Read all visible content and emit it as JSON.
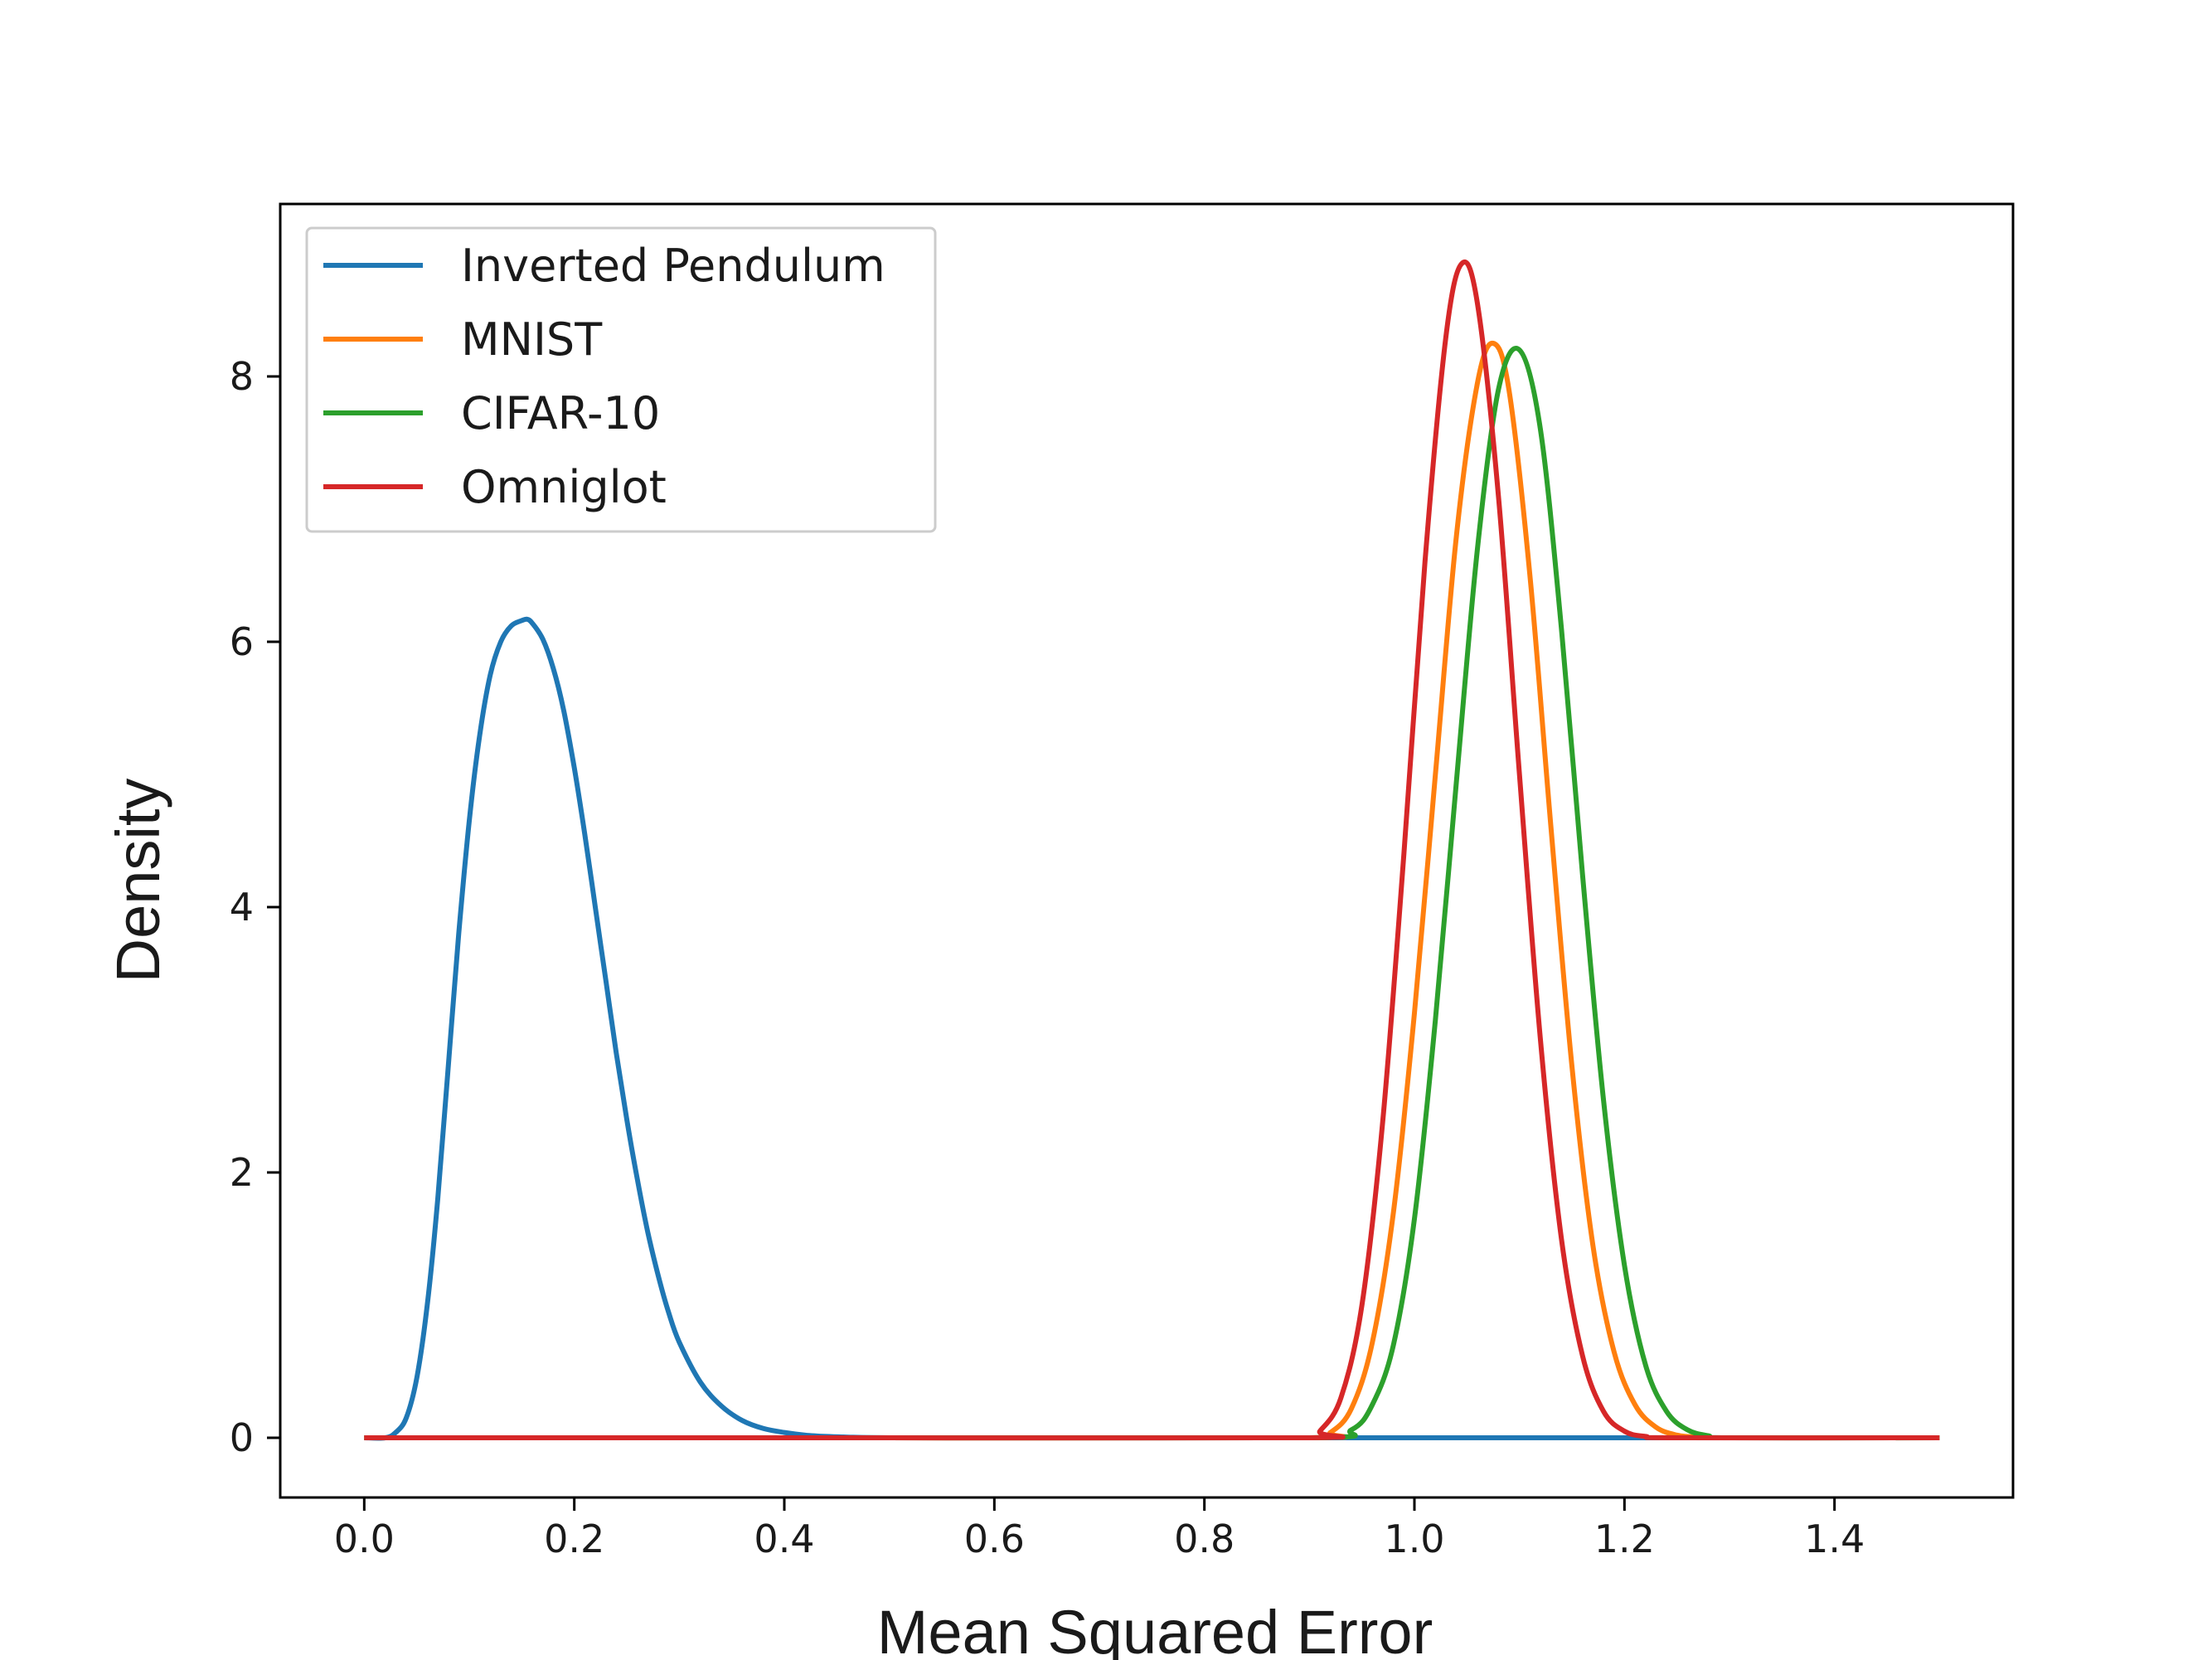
{
  "chart_data": {
    "type": "line",
    "title": "",
    "xlabel": "Mean Squared Error",
    "ylabel": "Density",
    "xlim": [
      -0.08,
      1.57
    ],
    "ylim": [
      -0.45,
      9.3
    ],
    "xticks": [
      {
        "value": 0.0,
        "label": "0.0"
      },
      {
        "value": 0.2,
        "label": "0.2"
      },
      {
        "value": 0.4,
        "label": "0.4"
      },
      {
        "value": 0.6,
        "label": "0.6"
      },
      {
        "value": 0.8,
        "label": "0.8"
      },
      {
        "value": 1.0,
        "label": "1.0"
      },
      {
        "value": 1.2,
        "label": "1.2"
      },
      {
        "value": 1.4,
        "label": "1.4"
      }
    ],
    "yticks": [
      {
        "value": 0,
        "label": "0"
      },
      {
        "value": 2,
        "label": "2"
      },
      {
        "value": 4,
        "label": "4"
      },
      {
        "value": 6,
        "label": "6"
      },
      {
        "value": 8,
        "label": "8"
      }
    ],
    "grid": false,
    "legend_position": "top-left",
    "series": [
      {
        "name": "Inverted Pendulum",
        "color": "#1f77b4",
        "x": [
          0.0,
          0.02,
          0.03,
          0.04,
          0.05,
          0.06,
          0.07,
          0.08,
          0.09,
          0.1,
          0.11,
          0.12,
          0.13,
          0.14,
          0.15,
          0.155,
          0.16,
          0.17,
          0.18,
          0.19,
          0.2,
          0.21,
          0.22,
          0.23,
          0.24,
          0.25,
          0.26,
          0.27,
          0.28,
          0.29,
          0.3,
          0.32,
          0.34,
          0.36,
          0.38,
          0.4,
          0.42,
          0.44,
          0.46,
          0.5,
          0.6,
          0.8,
          1.0,
          1.2,
          1.5
        ],
        "y": [
          0.0,
          0.0,
          0.04,
          0.15,
          0.45,
          1.0,
          1.8,
          2.8,
          3.8,
          4.65,
          5.3,
          5.75,
          6.0,
          6.12,
          6.16,
          6.17,
          6.14,
          6.02,
          5.8,
          5.48,
          5.05,
          4.55,
          4.0,
          3.45,
          2.9,
          2.4,
          1.95,
          1.55,
          1.22,
          0.94,
          0.72,
          0.42,
          0.24,
          0.13,
          0.07,
          0.04,
          0.02,
          0.01,
          0.005,
          0.0,
          0.0,
          0.0,
          0.0,
          0.0,
          0.0
        ]
      },
      {
        "name": "MNIST",
        "color": "#ff7f0e",
        "x": [
          0.0,
          0.5,
          0.9,
          0.92,
          0.94,
          0.96,
          0.98,
          1.0,
          1.02,
          1.04,
          1.06,
          1.075,
          1.09,
          1.11,
          1.13,
          1.15,
          1.17,
          1.19,
          1.21,
          1.23,
          1.25,
          1.27,
          1.3,
          1.5
        ],
        "y": [
          0.0,
          0.0,
          0.0,
          0.04,
          0.22,
          0.72,
          1.7,
          3.2,
          5.0,
          6.8,
          7.95,
          8.25,
          7.9,
          6.5,
          4.6,
          2.8,
          1.45,
          0.65,
          0.25,
          0.08,
          0.02,
          0.005,
          0.0,
          0.0
        ]
      },
      {
        "name": "CIFAR-10",
        "color": "#2ca02c",
        "x": [
          0.0,
          0.5,
          0.9,
          0.94,
          0.96,
          0.98,
          1.0,
          1.02,
          1.04,
          1.06,
          1.08,
          1.1,
          1.12,
          1.14,
          1.16,
          1.18,
          1.2,
          1.22,
          1.24,
          1.26,
          1.28,
          1.3,
          1.5
        ],
        "y": [
          0.0,
          0.0,
          0.0,
          0.06,
          0.25,
          0.7,
          1.65,
          3.15,
          4.95,
          6.7,
          7.9,
          8.2,
          7.6,
          6.1,
          4.25,
          2.55,
          1.3,
          0.55,
          0.2,
          0.06,
          0.015,
          0.0,
          0.0
        ]
      },
      {
        "name": "Omniglot",
        "color": "#d62728",
        "x": [
          0.0,
          0.5,
          0.9,
          0.91,
          0.93,
          0.95,
          0.97,
          0.99,
          1.01,
          1.03,
          1.045,
          1.06,
          1.08,
          1.1,
          1.12,
          1.14,
          1.16,
          1.18,
          1.2,
          1.22,
          1.25,
          1.5
        ],
        "y": [
          0.0,
          0.0,
          0.0,
          0.05,
          0.3,
          1.0,
          2.4,
          4.4,
          6.6,
          8.3,
          8.85,
          8.55,
          7.1,
          5.0,
          3.0,
          1.5,
          0.62,
          0.2,
          0.05,
          0.01,
          0.0,
          0.0
        ]
      }
    ]
  }
}
